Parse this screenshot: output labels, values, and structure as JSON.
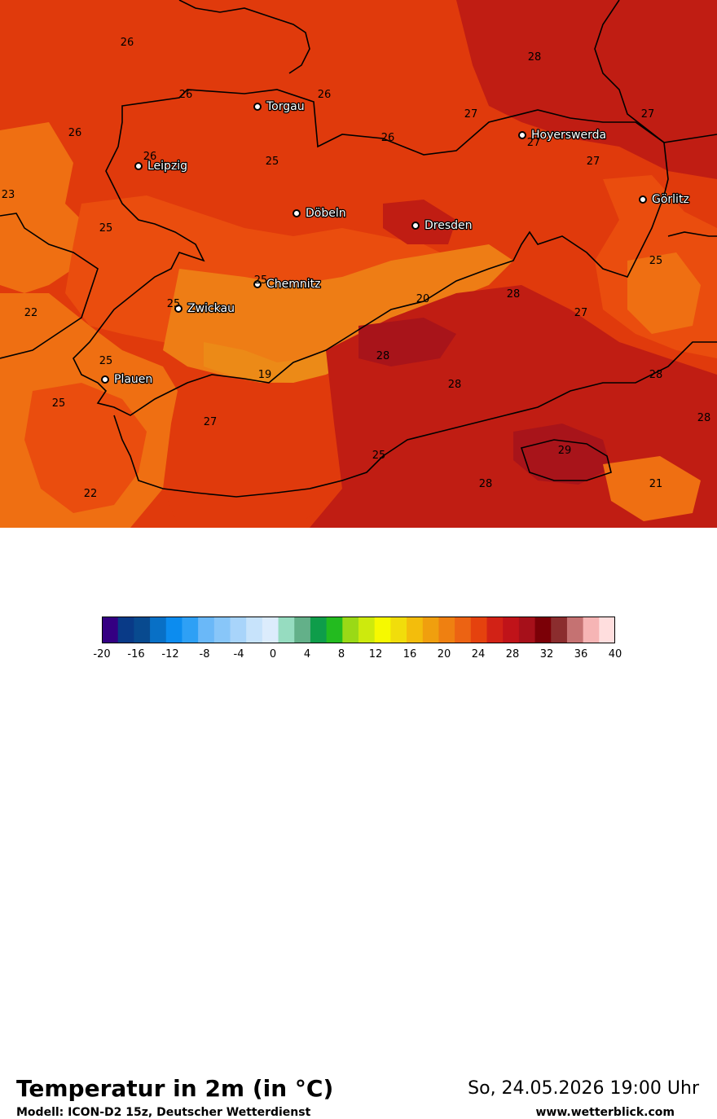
{
  "map": {
    "colors": {
      "t19": "#ec8a17",
      "t20": "#ee7d15",
      "t22": "#ef6f12",
      "t24": "#ea4d0e",
      "t26": "#e03a0c",
      "t28": "#c01d13",
      "t29": "#a8141a",
      "border": "#000000",
      "city_dot": "#000000"
    },
    "cities": [
      {
        "name": "Torgau"
      },
      {
        "name": "Leipzig"
      },
      {
        "name": "Hoyerswerda"
      },
      {
        "name": "Döbeln"
      },
      {
        "name": "Dresden"
      },
      {
        "name": "Görlitz"
      },
      {
        "name": "Chemnitz"
      },
      {
        "name": "Zwickau"
      },
      {
        "name": "Plauen"
      }
    ],
    "temp_labels": [
      "26",
      "26",
      "26",
      "26",
      "26",
      "26",
      "28",
      "27",
      "27",
      "27",
      "27",
      "23",
      "25",
      "25",
      "25",
      "25",
      "28",
      "27",
      "22",
      "25",
      "25",
      "20",
      "28",
      "19",
      "28",
      "28",
      "25",
      "27",
      "28",
      "29",
      "25",
      "28",
      "21",
      "22"
    ]
  },
  "footer": {
    "title": "Temperatur in 2m (in °C)",
    "model": "Modell: ICON-D2 15z, Deutscher Wetterdienst",
    "datetime": "So, 24.05.2026 19:00 Uhr",
    "website": "www.wetterblick.com"
  },
  "legend": {
    "min": -20,
    "max": 40,
    "ticks": [
      "-20",
      "-16",
      "-12",
      "-8",
      "-4",
      "0",
      "4",
      "8",
      "12",
      "16",
      "20",
      "24",
      "28",
      "32",
      "36",
      "40"
    ],
    "colors": [
      "#340082",
      "#093a87",
      "#084a8f",
      "#0870c6",
      "#0c8cef",
      "#2ea0f5",
      "#6ab8f8",
      "#88c6f9",
      "#a8d4fa",
      "#c7e3fb",
      "#dcecfc",
      "#96dcc0",
      "#63b089",
      "#0e9d4a",
      "#23bb1f",
      "#9ad916",
      "#cdea0d",
      "#f6f900",
      "#f1dd0b",
      "#f3bd0c",
      "#f09f0e",
      "#ef8011",
      "#ec6313",
      "#e5420e",
      "#d22216",
      "#c01319",
      "#a6101a",
      "#7b0007",
      "#8b2d2e",
      "#c57272",
      "#f6b5b5",
      "#ffdede"
    ]
  }
}
